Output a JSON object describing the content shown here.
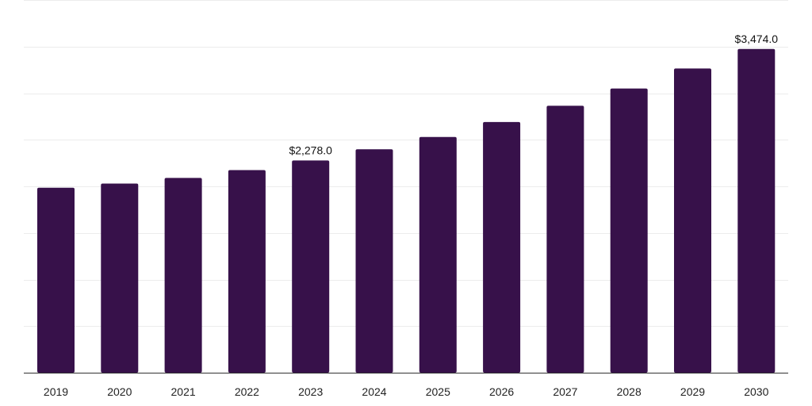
{
  "chart_data": {
    "type": "bar",
    "categories": [
      "2019",
      "2020",
      "2021",
      "2022",
      "2023",
      "2024",
      "2025",
      "2026",
      "2027",
      "2028",
      "2029",
      "2030"
    ],
    "values": [
      1985,
      2030,
      2090,
      2175,
      2278,
      2398,
      2530,
      2690,
      2865,
      3050,
      3265,
      3474
    ],
    "data_labels": [
      {
        "index": 4,
        "text": "$2,278.0"
      },
      {
        "index": 11,
        "text": "$3,474.0"
      }
    ],
    "title": "",
    "xlabel": "",
    "ylabel": "",
    "ylim": [
      0,
      4000
    ],
    "grid": true,
    "legend": "none",
    "colors": {
      "bar": "#37114a",
      "grid": "#ececec",
      "axis": "#333333"
    }
  }
}
